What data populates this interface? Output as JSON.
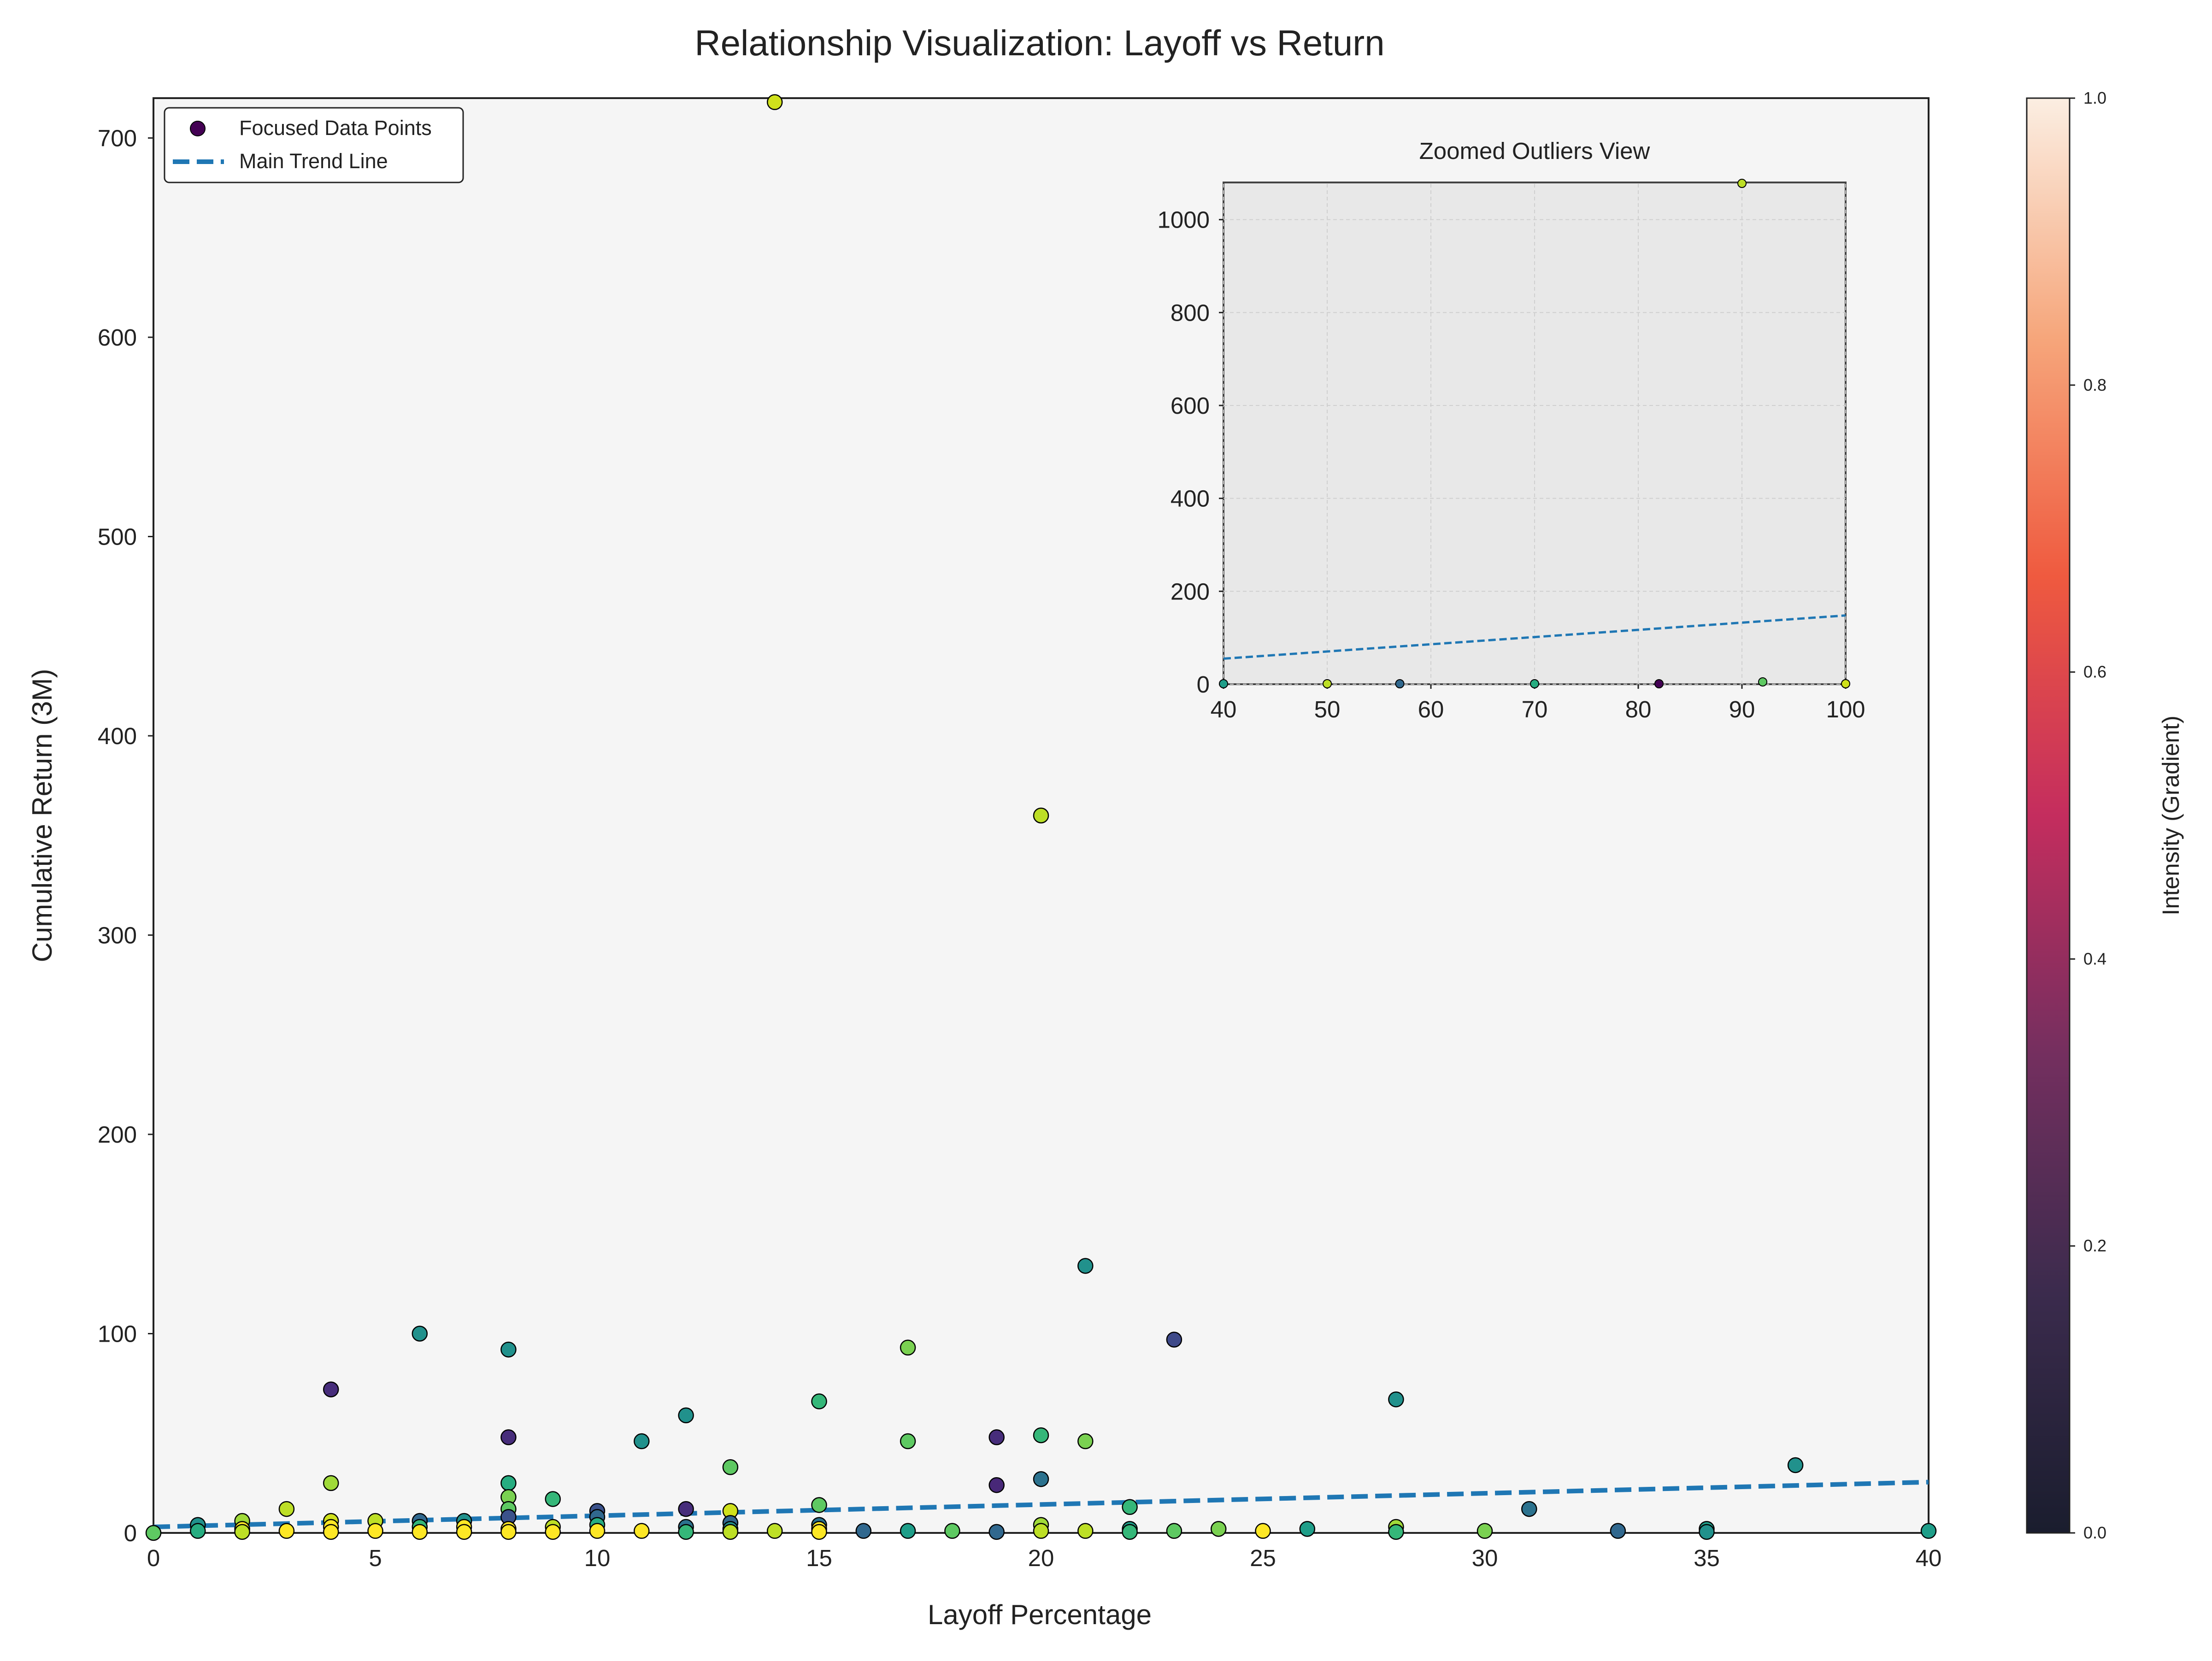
{
  "chart_data": {
    "type": "scatter",
    "title": "Relationship Visualization: Layoff vs Return",
    "xlabel": "Layoff Percentage",
    "ylabel": "Cumulative Return (3M)",
    "xlim": [
      0,
      40
    ],
    "ylim": [
      0,
      720
    ],
    "x_ticks": [
      0,
      5,
      10,
      15,
      20,
      25,
      30,
      35,
      40
    ],
    "y_ticks": [
      0,
      100,
      200,
      300,
      400,
      500,
      600,
      700
    ],
    "grid": false,
    "legend": {
      "placement": "top-left",
      "entries": [
        "Focused Data Points",
        "Main Trend Line"
      ]
    },
    "colors": {
      "plot_background": "#f5f5f5",
      "inset_background": "#e8e8e8",
      "trend_line": "#1f77b4",
      "legend_marker": "#440154",
      "point_edge": "#000000"
    },
    "series": [
      {
        "name": "Focused Data Points",
        "marker": "circle",
        "points": [
          {
            "x": 0,
            "y": 0,
            "color": "#5ec962"
          },
          {
            "x": 1,
            "y": 4,
            "color": "#21918c"
          },
          {
            "x": 1,
            "y": 1,
            "color": "#27ad81"
          },
          {
            "x": 2,
            "y": 6,
            "color": "#a0da39"
          },
          {
            "x": 2,
            "y": 2,
            "color": "#fde725"
          },
          {
            "x": 2,
            "y": 0.5,
            "color": "#bddf26"
          },
          {
            "x": 3,
            "y": 12,
            "color": "#bddf26"
          },
          {
            "x": 3,
            "y": 1,
            "color": "#fde725"
          },
          {
            "x": 4,
            "y": 72,
            "color": "#472d7b"
          },
          {
            "x": 4,
            "y": 25,
            "color": "#a0da39"
          },
          {
            "x": 4,
            "y": 6,
            "color": "#d0e11c"
          },
          {
            "x": 4,
            "y": 3,
            "color": "#fde725"
          },
          {
            "x": 4,
            "y": 0.5,
            "color": "#fde725"
          },
          {
            "x": 5,
            "y": 6,
            "color": "#bddf26"
          },
          {
            "x": 5,
            "y": 1,
            "color": "#fde725"
          },
          {
            "x": 6,
            "y": 100,
            "color": "#21918c"
          },
          {
            "x": 6,
            "y": 6,
            "color": "#31688e"
          },
          {
            "x": 6,
            "y": 3,
            "color": "#35b779"
          },
          {
            "x": 6,
            "y": 0.5,
            "color": "#fde725"
          },
          {
            "x": 7,
            "y": 6,
            "color": "#21918c"
          },
          {
            "x": 7,
            "y": 3,
            "color": "#fde725"
          },
          {
            "x": 7,
            "y": 0.5,
            "color": "#fde725"
          },
          {
            "x": 8,
            "y": 92,
            "color": "#21918c"
          },
          {
            "x": 8,
            "y": 48,
            "color": "#472d7b"
          },
          {
            "x": 8,
            "y": 25,
            "color": "#27ad81"
          },
          {
            "x": 8,
            "y": 18,
            "color": "#7ad151"
          },
          {
            "x": 8,
            "y": 12,
            "color": "#5ec962"
          },
          {
            "x": 8,
            "y": 8,
            "color": "#3b528b"
          },
          {
            "x": 8,
            "y": 2,
            "color": "#fde725"
          },
          {
            "x": 8,
            "y": 0.5,
            "color": "#fde725"
          },
          {
            "x": 9,
            "y": 17,
            "color": "#35b779"
          },
          {
            "x": 9,
            "y": 3,
            "color": "#bddf26"
          },
          {
            "x": 9,
            "y": 0.5,
            "color": "#fde725"
          },
          {
            "x": 10,
            "y": 11,
            "color": "#3b528b"
          },
          {
            "x": 10,
            "y": 8,
            "color": "#31688e"
          },
          {
            "x": 10,
            "y": 4,
            "color": "#27ad81"
          },
          {
            "x": 10,
            "y": 1,
            "color": "#fde725"
          },
          {
            "x": 11,
            "y": 46,
            "color": "#21918c"
          },
          {
            "x": 11,
            "y": 1,
            "color": "#fde725"
          },
          {
            "x": 12,
            "y": 59,
            "color": "#21918c"
          },
          {
            "x": 12,
            "y": 12,
            "color": "#472d7b"
          },
          {
            "x": 12,
            "y": 3,
            "color": "#2c728e"
          },
          {
            "x": 12,
            "y": 0.5,
            "color": "#35b779"
          },
          {
            "x": 13,
            "y": 33,
            "color": "#5ec962"
          },
          {
            "x": 13,
            "y": 11,
            "color": "#d0e11c"
          },
          {
            "x": 13,
            "y": 5,
            "color": "#31688e"
          },
          {
            "x": 13,
            "y": 2,
            "color": "#21918c"
          },
          {
            "x": 13,
            "y": 0.5,
            "color": "#bddf26"
          },
          {
            "x": 14,
            "y": 718,
            "color": "#d0e11c"
          },
          {
            "x": 14,
            "y": 1,
            "color": "#bddf26"
          },
          {
            "x": 15,
            "y": 66,
            "color": "#35b779"
          },
          {
            "x": 15,
            "y": 14,
            "color": "#5ec962"
          },
          {
            "x": 15,
            "y": 4,
            "color": "#2c728e"
          },
          {
            "x": 15,
            "y": 2,
            "color": "#fde725"
          },
          {
            "x": 15,
            "y": 0.5,
            "color": "#fde725"
          },
          {
            "x": 16,
            "y": 1,
            "color": "#31688e"
          },
          {
            "x": 17,
            "y": 93,
            "color": "#7ad151"
          },
          {
            "x": 17,
            "y": 46,
            "color": "#5ec962"
          },
          {
            "x": 17,
            "y": 1,
            "color": "#1f9e89"
          },
          {
            "x": 18,
            "y": 1,
            "color": "#5ec962"
          },
          {
            "x": 19,
            "y": 48,
            "color": "#472d7b"
          },
          {
            "x": 19,
            "y": 24,
            "color": "#482878"
          },
          {
            "x": 19,
            "y": 0.5,
            "color": "#31688e"
          },
          {
            "x": 20,
            "y": 360,
            "color": "#bddf26"
          },
          {
            "x": 20,
            "y": 49,
            "color": "#35b779"
          },
          {
            "x": 20,
            "y": 27,
            "color": "#2c728e"
          },
          {
            "x": 20,
            "y": 4,
            "color": "#a0da39"
          },
          {
            "x": 20,
            "y": 1,
            "color": "#bddf26"
          },
          {
            "x": 21,
            "y": 134,
            "color": "#21918c"
          },
          {
            "x": 21,
            "y": 46,
            "color": "#7ad151"
          },
          {
            "x": 21,
            "y": 1,
            "color": "#bddf26"
          },
          {
            "x": 22,
            "y": 13,
            "color": "#35b779"
          },
          {
            "x": 22,
            "y": 2,
            "color": "#1f9e89"
          },
          {
            "x": 22,
            "y": 0.5,
            "color": "#35b779"
          },
          {
            "x": 23,
            "y": 97,
            "color": "#3e4989"
          },
          {
            "x": 23,
            "y": 1,
            "color": "#5ec962"
          },
          {
            "x": 24,
            "y": 2,
            "color": "#7ad151"
          },
          {
            "x": 25,
            "y": 1,
            "color": "#fde725"
          },
          {
            "x": 26,
            "y": 2,
            "color": "#1f9e89"
          },
          {
            "x": 28,
            "y": 67,
            "color": "#21918c"
          },
          {
            "x": 28,
            "y": 3,
            "color": "#a0da39"
          },
          {
            "x": 28,
            "y": 0.5,
            "color": "#35b779"
          },
          {
            "x": 30,
            "y": 1,
            "color": "#7ad151"
          },
          {
            "x": 31,
            "y": 12,
            "color": "#2c728e"
          },
          {
            "x": 33,
            "y": 1,
            "color": "#31688e"
          },
          {
            "x": 35,
            "y": 2,
            "color": "#1f9e89"
          },
          {
            "x": 35,
            "y": 0.5,
            "color": "#21918c"
          },
          {
            "x": 37,
            "y": 34,
            "color": "#21918c"
          },
          {
            "x": 40,
            "y": 1,
            "color": "#1f9e89"
          }
        ]
      },
      {
        "name": "Main Trend Line",
        "line_style": "dashed",
        "color": "#1f77b4",
        "points": [
          {
            "x": 0,
            "y": 3
          },
          {
            "x": 40,
            "y": 25.5
          }
        ]
      }
    ],
    "inset": {
      "title": "Zoomed Outliers View",
      "xlim": [
        40,
        100
      ],
      "ylim": [
        0,
        1080
      ],
      "x_ticks": [
        40,
        50,
        60,
        70,
        80,
        90,
        100
      ],
      "y_ticks": [
        0,
        200,
        400,
        600,
        800,
        1000
      ],
      "grid": true,
      "points": [
        {
          "x": 40,
          "y": 1,
          "color": "#1f9e89"
        },
        {
          "x": 50,
          "y": 1,
          "color": "#bddf26"
        },
        {
          "x": 57,
          "y": 1,
          "color": "#31688e"
        },
        {
          "x": 70,
          "y": 1,
          "color": "#27ad81"
        },
        {
          "x": 82,
          "y": 1,
          "color": "#440154"
        },
        {
          "x": 90,
          "y": 1078,
          "color": "#bddf26"
        },
        {
          "x": 92,
          "y": 5,
          "color": "#5ec962"
        },
        {
          "x": 100,
          "y": 1,
          "color": "#d0e11c"
        }
      ],
      "trend_line": [
        {
          "x": 40,
          "y": 55
        },
        {
          "x": 100,
          "y": 148
        }
      ]
    },
    "colorbar": {
      "label": "Intensity (Gradient)",
      "range": [
        0,
        1
      ],
      "ticks": [
        "0.0",
        "0.2",
        "0.4",
        "0.6",
        "0.8",
        "1.0"
      ],
      "gradient_stops": [
        "#1a1d2e",
        "#3b2b4d",
        "#742f5f",
        "#c42d5e",
        "#ef5a3f",
        "#f6a67b",
        "#fbeee2"
      ]
    }
  }
}
